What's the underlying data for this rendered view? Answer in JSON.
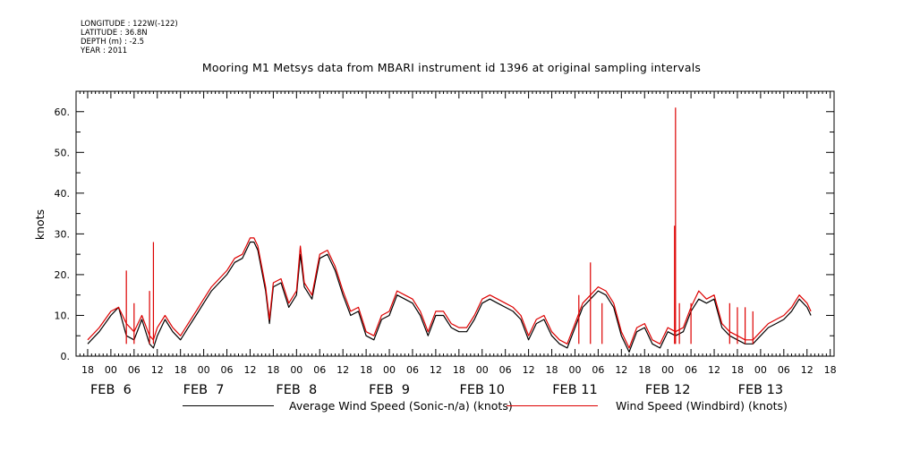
{
  "header": {
    "longitude": "LONGITUDE : 122W(-122)",
    "latitude": "LATITUDE : 36.8N",
    "depth": "DEPTH (m) : -2.5",
    "year": "YEAR : 2011"
  },
  "colors": {
    "series1": "#000000",
    "series2": "#dd0000"
  },
  "chart_data": {
    "type": "line",
    "title": "Mooring M1 Metsys data from MBARI instrument id 1396 at original sampling intervals",
    "ylabel": "knots",
    "xlabel": "",
    "ylim": [
      0,
      65
    ],
    "xlim": [
      "2011-02-05T15:00",
      "2011-02-13T19:00"
    ],
    "yticks": [
      "0.",
      "10.",
      "20.",
      "30.",
      "40.",
      "50.",
      "60."
    ],
    "xtick_hour_labels": [
      "18",
      "00",
      "06",
      "12",
      "18",
      "00",
      "06",
      "12",
      "18",
      "00",
      "06",
      "12",
      "18",
      "00",
      "06",
      "12",
      "18",
      "00",
      "06",
      "12",
      "18",
      "00",
      "06",
      "12",
      "18",
      "00",
      "06",
      "12",
      "18",
      "00",
      "06",
      "12",
      "18"
    ],
    "date_labels": [
      "FEB  6",
      "FEB  7",
      "FEB  8",
      "FEB  9",
      "FEB 10",
      "FEB 11",
      "FEB 12",
      "FEB 13"
    ],
    "grid": false,
    "legend_position": "bottom",
    "series": [
      {
        "name": "Average Wind Speed (Sonic-n/a) (knots)",
        "color": "#000000",
        "points": [
          [
            "2011-02-05T18:00",
            3
          ],
          [
            "2011-02-05T21:00",
            6
          ],
          [
            "2011-02-06T00:00",
            10
          ],
          [
            "2011-02-06T02:00",
            12
          ],
          [
            "2011-02-06T04:00",
            5
          ],
          [
            "2011-02-06T06:00",
            4
          ],
          [
            "2011-02-06T08:00",
            9
          ],
          [
            "2011-02-06T10:00",
            3
          ],
          [
            "2011-02-06T11:00",
            2
          ],
          [
            "2011-02-06T12:00",
            5
          ],
          [
            "2011-02-06T14:00",
            9
          ],
          [
            "2011-02-06T16:00",
            6
          ],
          [
            "2011-02-06T18:00",
            4
          ],
          [
            "2011-02-06T20:00",
            7
          ],
          [
            "2011-02-06T22:00",
            10
          ],
          [
            "2011-02-07T00:00",
            13
          ],
          [
            "2011-02-07T02:00",
            16
          ],
          [
            "2011-02-07T04:00",
            18
          ],
          [
            "2011-02-07T06:00",
            20
          ],
          [
            "2011-02-07T08:00",
            23
          ],
          [
            "2011-02-07T10:00",
            24
          ],
          [
            "2011-02-07T12:00",
            28
          ],
          [
            "2011-02-07T13:00",
            28
          ],
          [
            "2011-02-07T14:00",
            26
          ],
          [
            "2011-02-07T16:00",
            16
          ],
          [
            "2011-02-07T17:00",
            8
          ],
          [
            "2011-02-07T18:00",
            17
          ],
          [
            "2011-02-07T20:00",
            18
          ],
          [
            "2011-02-07T22:00",
            12
          ],
          [
            "2011-02-08T00:00",
            15
          ],
          [
            "2011-02-08T01:00",
            25
          ],
          [
            "2011-02-08T02:00",
            17
          ],
          [
            "2011-02-08T04:00",
            14
          ],
          [
            "2011-02-08T06:00",
            24
          ],
          [
            "2011-02-08T08:00",
            25
          ],
          [
            "2011-02-08T10:00",
            21
          ],
          [
            "2011-02-08T12:00",
            15
          ],
          [
            "2011-02-08T14:00",
            10
          ],
          [
            "2011-02-08T16:00",
            11
          ],
          [
            "2011-02-08T18:00",
            5
          ],
          [
            "2011-02-08T20:00",
            4
          ],
          [
            "2011-02-08T22:00",
            9
          ],
          [
            "2011-02-09T00:00",
            10
          ],
          [
            "2011-02-09T02:00",
            15
          ],
          [
            "2011-02-09T04:00",
            14
          ],
          [
            "2011-02-09T06:00",
            13
          ],
          [
            "2011-02-09T08:00",
            10
          ],
          [
            "2011-02-09T10:00",
            5
          ],
          [
            "2011-02-09T12:00",
            10
          ],
          [
            "2011-02-09T14:00",
            10
          ],
          [
            "2011-02-09T16:00",
            7
          ],
          [
            "2011-02-09T18:00",
            6
          ],
          [
            "2011-02-09T20:00",
            6
          ],
          [
            "2011-02-09T22:00",
            9
          ],
          [
            "2011-02-10T00:00",
            13
          ],
          [
            "2011-02-10T02:00",
            14
          ],
          [
            "2011-02-10T04:00",
            13
          ],
          [
            "2011-02-10T06:00",
            12
          ],
          [
            "2011-02-10T08:00",
            11
          ],
          [
            "2011-02-10T10:00",
            9
          ],
          [
            "2011-02-10T12:00",
            4
          ],
          [
            "2011-02-10T14:00",
            8
          ],
          [
            "2011-02-10T16:00",
            9
          ],
          [
            "2011-02-10T18:00",
            5
          ],
          [
            "2011-02-10T20:00",
            3
          ],
          [
            "2011-02-10T22:00",
            2
          ],
          [
            "2011-02-11T00:00",
            7
          ],
          [
            "2011-02-11T02:00",
            12
          ],
          [
            "2011-02-11T04:00",
            14
          ],
          [
            "2011-02-11T06:00",
            16
          ],
          [
            "2011-02-11T08:00",
            15
          ],
          [
            "2011-02-11T10:00",
            12
          ],
          [
            "2011-02-11T12:00",
            5
          ],
          [
            "2011-02-11T14:00",
            1
          ],
          [
            "2011-02-11T16:00",
            6
          ],
          [
            "2011-02-11T18:00",
            7
          ],
          [
            "2011-02-11T20:00",
            3
          ],
          [
            "2011-02-11T22:00",
            2
          ],
          [
            "2011-02-12T00:00",
            6
          ],
          [
            "2011-02-12T02:00",
            5
          ],
          [
            "2011-02-12T04:00",
            6
          ],
          [
            "2011-02-12T06:00",
            11
          ],
          [
            "2011-02-12T08:00",
            14
          ],
          [
            "2011-02-12T10:00",
            13
          ],
          [
            "2011-02-12T12:00",
            14
          ],
          [
            "2011-02-12T14:00",
            7
          ],
          [
            "2011-02-12T16:00",
            5
          ],
          [
            "2011-02-12T18:00",
            4
          ],
          [
            "2011-02-12T20:00",
            3
          ],
          [
            "2011-02-12T22:00",
            3
          ],
          [
            "2011-02-13T00:00",
            5
          ],
          [
            "2011-02-13T02:00",
            7
          ],
          [
            "2011-02-13T04:00",
            8
          ],
          [
            "2011-02-13T06:00",
            9
          ],
          [
            "2011-02-13T08:00",
            11
          ],
          [
            "2011-02-13T10:00",
            14
          ],
          [
            "2011-02-13T12:00",
            12
          ],
          [
            "2011-02-13T13:00",
            10
          ]
        ]
      },
      {
        "name": "Wind Speed (Windbird) (knots)",
        "color": "#dd0000",
        "points": [
          [
            "2011-02-05T18:00",
            4
          ],
          [
            "2011-02-05T21:00",
            7
          ],
          [
            "2011-02-06T00:00",
            11
          ],
          [
            "2011-02-06T02:00",
            12
          ],
          [
            "2011-02-06T03:00",
            10
          ],
          [
            "2011-02-06T04:00",
            8
          ],
          [
            "2011-02-06T06:00",
            6
          ],
          [
            "2011-02-06T08:00",
            10
          ],
          [
            "2011-02-06T10:00",
            5
          ],
          [
            "2011-02-06T11:00",
            4
          ],
          [
            "2011-02-06T12:00",
            7
          ],
          [
            "2011-02-06T14:00",
            10
          ],
          [
            "2011-02-06T16:00",
            7
          ],
          [
            "2011-02-06T18:00",
            5
          ],
          [
            "2011-02-06T20:00",
            8
          ],
          [
            "2011-02-06T22:00",
            11
          ],
          [
            "2011-02-07T00:00",
            14
          ],
          [
            "2011-02-07T02:00",
            17
          ],
          [
            "2011-02-07T04:00",
            19
          ],
          [
            "2011-02-07T06:00",
            21
          ],
          [
            "2011-02-07T08:00",
            24
          ],
          [
            "2011-02-07T10:00",
            25
          ],
          [
            "2011-02-07T12:00",
            29
          ],
          [
            "2011-02-07T13:00",
            29
          ],
          [
            "2011-02-07T14:00",
            27
          ],
          [
            "2011-02-07T16:00",
            17
          ],
          [
            "2011-02-07T17:00",
            9
          ],
          [
            "2011-02-07T18:00",
            18
          ],
          [
            "2011-02-07T20:00",
            19
          ],
          [
            "2011-02-07T22:00",
            13
          ],
          [
            "2011-02-08T00:00",
            16
          ],
          [
            "2011-02-08T01:00",
            27
          ],
          [
            "2011-02-08T02:00",
            18
          ],
          [
            "2011-02-08T04:00",
            15
          ],
          [
            "2011-02-08T06:00",
            25
          ],
          [
            "2011-02-08T08:00",
            26
          ],
          [
            "2011-02-08T10:00",
            22
          ],
          [
            "2011-02-08T12:00",
            16
          ],
          [
            "2011-02-08T14:00",
            11
          ],
          [
            "2011-02-08T16:00",
            12
          ],
          [
            "2011-02-08T18:00",
            6
          ],
          [
            "2011-02-08T20:00",
            5
          ],
          [
            "2011-02-08T22:00",
            10
          ],
          [
            "2011-02-09T00:00",
            11
          ],
          [
            "2011-02-09T02:00",
            16
          ],
          [
            "2011-02-09T04:00",
            15
          ],
          [
            "2011-02-09T06:00",
            14
          ],
          [
            "2011-02-09T08:00",
            11
          ],
          [
            "2011-02-09T10:00",
            6
          ],
          [
            "2011-02-09T12:00",
            11
          ],
          [
            "2011-02-09T14:00",
            11
          ],
          [
            "2011-02-09T16:00",
            8
          ],
          [
            "2011-02-09T18:00",
            7
          ],
          [
            "2011-02-09T20:00",
            7
          ],
          [
            "2011-02-09T22:00",
            10
          ],
          [
            "2011-02-10T00:00",
            14
          ],
          [
            "2011-02-10T02:00",
            15
          ],
          [
            "2011-02-10T04:00",
            14
          ],
          [
            "2011-02-10T06:00",
            13
          ],
          [
            "2011-02-10T08:00",
            12
          ],
          [
            "2011-02-10T10:00",
            10
          ],
          [
            "2011-02-10T12:00",
            5
          ],
          [
            "2011-02-10T14:00",
            9
          ],
          [
            "2011-02-10T16:00",
            10
          ],
          [
            "2011-02-10T18:00",
            6
          ],
          [
            "2011-02-10T20:00",
            4
          ],
          [
            "2011-02-10T22:00",
            3
          ],
          [
            "2011-02-11T00:00",
            8
          ],
          [
            "2011-02-11T02:00",
            13
          ],
          [
            "2011-02-11T04:00",
            15
          ],
          [
            "2011-02-11T06:00",
            17
          ],
          [
            "2011-02-11T08:00",
            16
          ],
          [
            "2011-02-11T10:00",
            13
          ],
          [
            "2011-02-11T12:00",
            6
          ],
          [
            "2011-02-11T14:00",
            2
          ],
          [
            "2011-02-11T16:00",
            7
          ],
          [
            "2011-02-11T18:00",
            8
          ],
          [
            "2011-02-11T20:00",
            4
          ],
          [
            "2011-02-11T22:00",
            3
          ],
          [
            "2011-02-12T00:00",
            7
          ],
          [
            "2011-02-12T02:00",
            6
          ],
          [
            "2011-02-12T04:00",
            7
          ],
          [
            "2011-02-12T06:00",
            12
          ],
          [
            "2011-02-12T08:00",
            16
          ],
          [
            "2011-02-12T10:00",
            14
          ],
          [
            "2011-02-12T12:00",
            15
          ],
          [
            "2011-02-12T14:00",
            8
          ],
          [
            "2011-02-12T16:00",
            6
          ],
          [
            "2011-02-12T18:00",
            5
          ],
          [
            "2011-02-12T20:00",
            4
          ],
          [
            "2011-02-12T22:00",
            4
          ],
          [
            "2011-02-13T00:00",
            6
          ],
          [
            "2011-02-13T02:00",
            8
          ],
          [
            "2011-02-13T04:00",
            9
          ],
          [
            "2011-02-13T06:00",
            10
          ],
          [
            "2011-02-13T08:00",
            12
          ],
          [
            "2011-02-13T10:00",
            15
          ],
          [
            "2011-02-13T12:00",
            13
          ],
          [
            "2011-02-13T13:00",
            11
          ]
        ],
        "spikes": [
          [
            "2011-02-06T04:00",
            21
          ],
          [
            "2011-02-06T11:00",
            28
          ],
          [
            "2011-02-06T10:00",
            16
          ],
          [
            "2011-02-06T06:00",
            13
          ],
          [
            "2011-02-11T04:00",
            23
          ],
          [
            "2011-02-11T01:00",
            15
          ],
          [
            "2011-02-11T07:00",
            13
          ],
          [
            "2011-02-12T02:00",
            61
          ],
          [
            "2011-02-12T01:45",
            32
          ],
          [
            "2011-02-12T03:00",
            13
          ],
          [
            "2011-02-12T06:00",
            13
          ],
          [
            "2011-02-12T16:00",
            13
          ],
          [
            "2011-02-12T18:00",
            12
          ],
          [
            "2011-02-12T20:00",
            12
          ],
          [
            "2011-02-12T22:00",
            11
          ]
        ]
      }
    ]
  }
}
